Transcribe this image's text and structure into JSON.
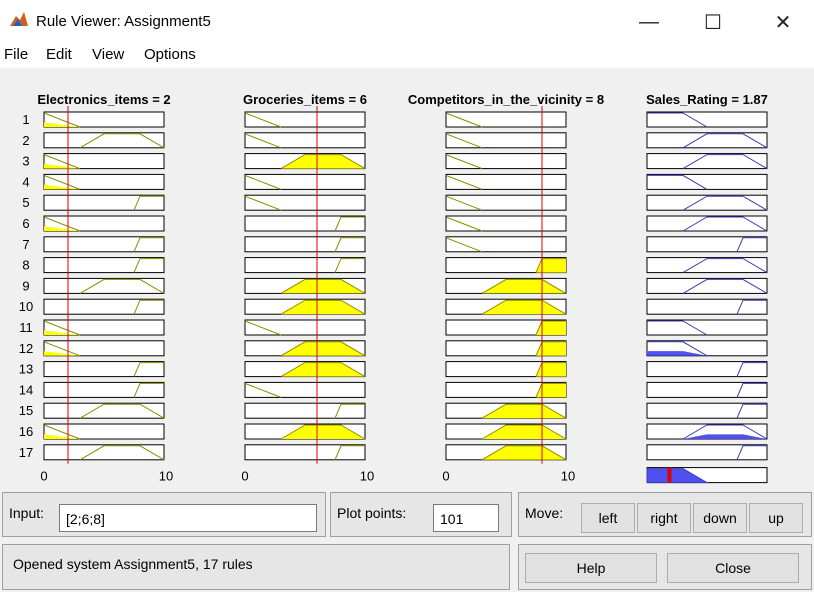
{
  "window": {
    "title": "Rule Viewer: Assignment5"
  },
  "menu": [
    "File",
    "Edit",
    "View",
    "Options"
  ],
  "inputs": [
    {
      "label": "Electronics_items = 2"
    },
    {
      "label": "Groceries_items = 6"
    },
    {
      "label": "Competitors_in_the_vicinity = 8"
    }
  ],
  "output": {
    "label": "Sales_Rating = 1.87"
  },
  "rule_numbers": [
    "1",
    "2",
    "3",
    "4",
    "5",
    "6",
    "7",
    "8",
    "9",
    "10",
    "11",
    "12",
    "13",
    "14",
    "15",
    "16",
    "17"
  ],
  "axis": {
    "min": "0",
    "max": "10"
  },
  "current_inputs": [
    2,
    6,
    8
  ],
  "input_value": 2,
  "groceries_value": 6,
  "competitors_value": 8,
  "output_value": 1.87,
  "colors": {
    "input_fill": "#ffff00",
    "input_line": "#8c8c00",
    "output_fill": "#5050f0",
    "output_line": "#3c3cb4",
    "marker": "#e00000"
  },
  "rules": [
    [
      "low",
      "low",
      "low",
      "low"
    ],
    [
      "med",
      "low",
      "low",
      "med"
    ],
    [
      "low",
      "med",
      "low",
      "med"
    ],
    [
      "low",
      "low",
      "low",
      "low"
    ],
    [
      "high",
      "low",
      "low",
      "med"
    ],
    [
      "low",
      "high",
      "low",
      "med"
    ],
    [
      "high",
      "high",
      "low",
      "high"
    ],
    [
      "high",
      "high",
      "high",
      "med"
    ],
    [
      "med",
      "med",
      "med",
      "med"
    ],
    [
      "high",
      "med",
      "med",
      "high"
    ],
    [
      "low",
      "low",
      "high",
      "low"
    ],
    [
      "low",
      "med",
      "high",
      "low"
    ],
    [
      "high",
      "med",
      "high",
      "high"
    ],
    [
      "high",
      "low",
      "high",
      "high"
    ],
    [
      "med",
      "high",
      "med",
      "high"
    ],
    [
      "low",
      "med",
      "med",
      "med"
    ],
    [
      "med",
      "high",
      "med",
      "high"
    ]
  ],
  "controls": {
    "input_label": "Input:",
    "input_value": "[2;6;8]",
    "plot_points_label": "Plot points:",
    "plot_points_value": "101",
    "move_label": "Move:",
    "left": "left",
    "right": "right",
    "down": "down",
    "up": "up",
    "status": "Opened system Assignment5, 17 rules",
    "help": "Help",
    "close": "Close"
  }
}
